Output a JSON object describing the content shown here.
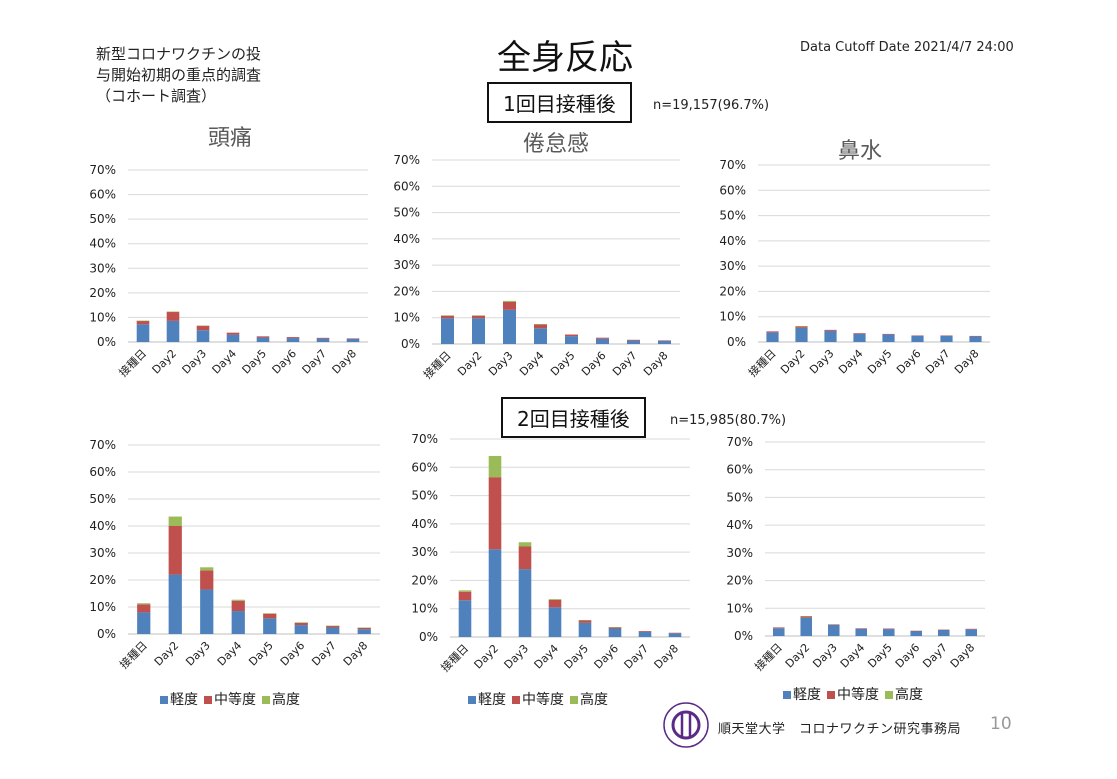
{
  "slide": {
    "subtitle": "新型コロナワクチンの投\n与開始初期の重点的調査\n（コホート調査）",
    "title": "全身反応",
    "cutoff": "Data Cutoff Date 2021/4/7 24:00",
    "dose1_label": "1回目接種後",
    "dose1_n": "n=19,157(96.7%)",
    "dose2_label": "2回目接種後",
    "dose2_n": "n=15,985(80.7%)",
    "footer_org": "順天堂大学　コロナワクチン研究事務局",
    "page_number": "10"
  },
  "colors": {
    "mild": "#4f81bd",
    "moderate": "#c0504d",
    "severe": "#9bbb59",
    "grid": "#d9d9d9",
    "axis_title": "#595959"
  },
  "legend": [
    "軽度",
    "中等度",
    "高度"
  ],
  "chart_data": [
    {
      "id": "headache-dose1",
      "type": "bar",
      "stacked": true,
      "title": "頭痛",
      "categories": [
        "接種日",
        "Day2",
        "Day3",
        "Day4",
        "Day5",
        "Day6",
        "Day7",
        "Day8"
      ],
      "yticks": [
        "0%",
        "10%",
        "20%",
        "30%",
        "40%",
        "50%",
        "60%",
        "70%"
      ],
      "ylim": [
        0,
        70
      ],
      "series": [
        {
          "name": "軽度",
          "values": [
            7.2,
            8.6,
            4.8,
            3.0,
            1.8,
            1.6,
            1.4,
            1.3
          ]
        },
        {
          "name": "中等度",
          "values": [
            1.4,
            3.6,
            1.8,
            0.8,
            0.5,
            0.4,
            0.3,
            0.2
          ]
        },
        {
          "name": "高度",
          "values": [
            0.1,
            0.2,
            0.1,
            0,
            0,
            0,
            0,
            0
          ]
        }
      ]
    },
    {
      "id": "fatigue-dose1",
      "type": "bar",
      "stacked": true,
      "title": "倦怠感",
      "categories": [
        "接種日",
        "Day2",
        "Day3",
        "Day4",
        "Day5",
        "Day6",
        "Day7",
        "Day8"
      ],
      "yticks": [
        "0%",
        "10%",
        "20%",
        "30%",
        "40%",
        "50%",
        "60%",
        "70%"
      ],
      "ylim": [
        0,
        70
      ],
      "series": [
        {
          "name": "軽度",
          "values": [
            9.8,
            9.8,
            13.0,
            6.0,
            3.0,
            2.0,
            1.3,
            1.2
          ]
        },
        {
          "name": "中等度",
          "values": [
            1.0,
            1.0,
            3.0,
            1.4,
            0.6,
            0.4,
            0.3,
            0.2
          ]
        },
        {
          "name": "高度",
          "values": [
            0.1,
            0.1,
            0.4,
            0.2,
            0,
            0,
            0,
            0
          ]
        }
      ]
    },
    {
      "id": "rhinorrhea-dose1",
      "type": "bar",
      "stacked": true,
      "title": "鼻水",
      "categories": [
        "接種日",
        "Day2",
        "Day3",
        "Day4",
        "Day5",
        "Day6",
        "Day7",
        "Day8"
      ],
      "yticks": [
        "0%",
        "10%",
        "20%",
        "30%",
        "40%",
        "50%",
        "60%",
        "70%"
      ],
      "ylim": [
        0,
        70
      ],
      "series": [
        {
          "name": "軽度",
          "values": [
            3.8,
            5.6,
            4.4,
            3.2,
            3.0,
            2.4,
            2.4,
            2.2
          ]
        },
        {
          "name": "中等度",
          "values": [
            0.4,
            0.6,
            0.4,
            0.3,
            0.2,
            0.2,
            0.2,
            0.2
          ]
        },
        {
          "name": "高度",
          "values": [
            0,
            0.1,
            0,
            0,
            0,
            0,
            0,
            0
          ]
        }
      ]
    },
    {
      "id": "headache-dose2",
      "type": "bar",
      "stacked": true,
      "title": "",
      "categories": [
        "接種日",
        "Day2",
        "Day3",
        "Day4",
        "Day5",
        "Day6",
        "Day7",
        "Day8"
      ],
      "yticks": [
        "0%",
        "10%",
        "20%",
        "30%",
        "40%",
        "50%",
        "60%",
        "70%"
      ],
      "ylim": [
        0,
        70
      ],
      "series": [
        {
          "name": "軽度",
          "values": [
            8.0,
            22.0,
            16.5,
            8.5,
            5.8,
            3.3,
            2.4,
            1.8
          ]
        },
        {
          "name": "中等度",
          "values": [
            3.0,
            18.0,
            7.0,
            3.8,
            1.7,
            0.9,
            0.6,
            0.5
          ]
        },
        {
          "name": "高度",
          "values": [
            0.4,
            3.5,
            1.2,
            0.4,
            0.2,
            0.1,
            0.1,
            0.1
          ]
        }
      ]
    },
    {
      "id": "fatigue-dose2",
      "type": "bar",
      "stacked": true,
      "title": "",
      "categories": [
        "接種日",
        "Day2",
        "Day3",
        "Day4",
        "Day5",
        "Day6",
        "Day7",
        "Day8"
      ],
      "yticks": [
        "0%",
        "10%",
        "20%",
        "30%",
        "40%",
        "50%",
        "60%",
        "70%"
      ],
      "ylim": [
        0,
        70
      ],
      "series": [
        {
          "name": "軽度",
          "values": [
            13.0,
            31.0,
            24.0,
            10.5,
            5.0,
            3.0,
            1.8,
            1.3
          ]
        },
        {
          "name": "中等度",
          "values": [
            3.0,
            25.5,
            8.0,
            2.6,
            0.9,
            0.4,
            0.3,
            0.2
          ]
        },
        {
          "name": "高度",
          "values": [
            0.5,
            7.5,
            1.5,
            0.3,
            0.1,
            0.1,
            0,
            0
          ]
        }
      ]
    },
    {
      "id": "rhinorrhea-dose2",
      "type": "bar",
      "stacked": true,
      "title": "",
      "categories": [
        "接種日",
        "Day2",
        "Day3",
        "Day4",
        "Day5",
        "Day6",
        "Day7",
        "Day8"
      ],
      "yticks": [
        "0%",
        "10%",
        "20%",
        "30%",
        "40%",
        "50%",
        "60%",
        "70%"
      ],
      "ylim": [
        0,
        70
      ],
      "series": [
        {
          "name": "軽度",
          "values": [
            2.8,
            6.6,
            4.0,
            2.6,
            2.5,
            1.8,
            2.2,
            2.4
          ]
        },
        {
          "name": "中等度",
          "values": [
            0.3,
            0.5,
            0.2,
            0.2,
            0.2,
            0.1,
            0.1,
            0.2
          ]
        },
        {
          "name": "高度",
          "values": [
            0,
            0.1,
            0,
            0,
            0,
            0,
            0,
            0
          ]
        }
      ]
    }
  ]
}
